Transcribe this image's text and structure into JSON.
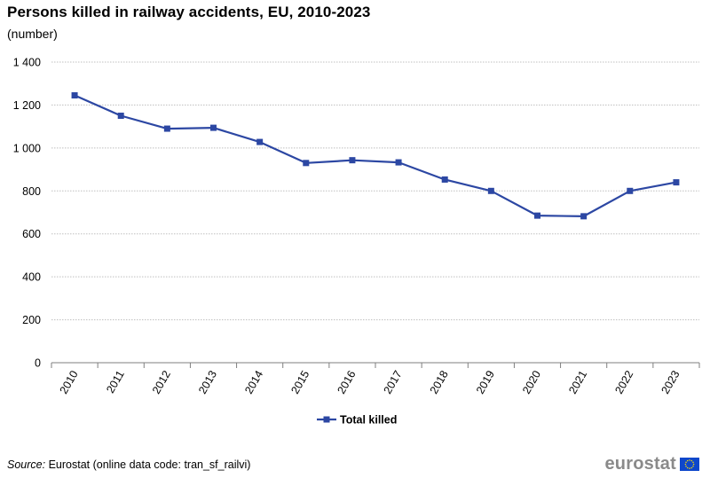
{
  "header": {
    "title": "Persons killed in railway accidents, EU, 2010-2023",
    "subtitle": "(number)"
  },
  "footer": {
    "source_label": "Source:",
    "source_text": " Eurostat (online data code: tran_sf_railvi)",
    "brand": "eurostat",
    "flag_icon": "eu-flag-icon"
  },
  "colors": {
    "series": "#2c47a3",
    "grid": "#bfbfbf",
    "axis": "#7f7f7f",
    "text": "#000000",
    "flag_blue": "#0e47cb",
    "flag_star": "#ffdd00"
  },
  "chart_data": {
    "type": "line",
    "title": "Persons killed in railway accidents, EU, 2010-2023",
    "subtitle": "(number)",
    "xlabel": "",
    "ylabel": "",
    "categories": [
      "2010",
      "2011",
      "2012",
      "2013",
      "2014",
      "2015",
      "2016",
      "2017",
      "2018",
      "2019",
      "2020",
      "2021",
      "2022",
      "2023"
    ],
    "series": [
      {
        "name": "Total killed",
        "values": [
          1245,
          1150,
          1090,
          1094,
          1028,
          930,
          943,
          933,
          853,
          800,
          685,
          682,
          800,
          840
        ]
      }
    ],
    "ylim": [
      0,
      1400
    ],
    "yticks": [
      0,
      200,
      400,
      600,
      800,
      1000,
      1200,
      1400
    ],
    "ytick_labels": [
      "0",
      "200",
      "400",
      "600",
      "800",
      "1 000",
      "1 200",
      "1 400"
    ],
    "grid": true,
    "legend_position": "bottom-center"
  }
}
